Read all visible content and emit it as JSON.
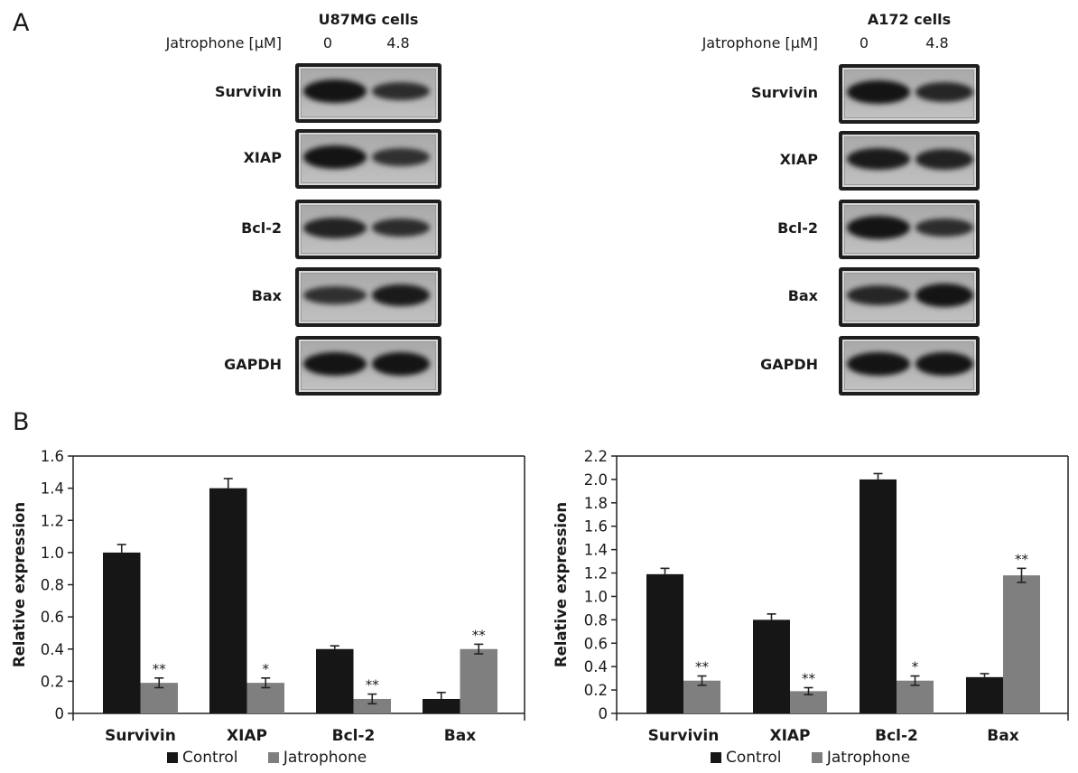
{
  "panel_a": {
    "letter": "A",
    "treatment_label": "Jatrophone [μM]",
    "lanes": [
      "0",
      "4.8"
    ],
    "blots": [
      {
        "cell_line": "U87MG cells",
        "proteins": [
          {
            "name": "Survivin",
            "band_intensity": [
              1.0,
              0.65
            ]
          },
          {
            "name": "XIAP",
            "band_intensity": [
              1.0,
              0.6
            ]
          },
          {
            "name": "Bcl-2",
            "band_intensity": [
              0.8,
              0.65
            ]
          },
          {
            "name": "Bax",
            "band_intensity": [
              0.6,
              0.9
            ]
          },
          {
            "name": "GAPDH",
            "band_intensity": [
              1.0,
              1.0
            ]
          }
        ]
      },
      {
        "cell_line": "A172 cells",
        "proteins": [
          {
            "name": "Survivin",
            "band_intensity": [
              1.0,
              0.75
            ]
          },
          {
            "name": "XIAP",
            "band_intensity": [
              0.9,
              0.8
            ]
          },
          {
            "name": "Bcl-2",
            "band_intensity": [
              1.0,
              0.65
            ]
          },
          {
            "name": "Bax",
            "band_intensity": [
              0.75,
              1.0
            ]
          },
          {
            "name": "GAPDH",
            "band_intensity": [
              1.0,
              1.0
            ]
          }
        ]
      }
    ]
  },
  "panel_b": {
    "letter": "B",
    "legend": [
      {
        "label": "Control",
        "color": "#161616"
      },
      {
        "label": "Jatrophone",
        "color": "#7f7f7f"
      }
    ]
  },
  "chart_data": [
    {
      "type": "bar",
      "title": "U87MG cells",
      "categories": [
        "Survivin",
        "XIAP",
        "Bcl-2",
        "Bax"
      ],
      "series": [
        {
          "name": "Control",
          "color": "#161616",
          "values": [
            1.0,
            1.4,
            0.4,
            0.09
          ],
          "errors": [
            0.05,
            0.06,
            0.02,
            0.04
          ]
        },
        {
          "name": "Jatrophone",
          "color": "#7f7f7f",
          "values": [
            0.19,
            0.19,
            0.09,
            0.4
          ],
          "errors": [
            0.03,
            0.03,
            0.03,
            0.03
          ],
          "significance": [
            "**",
            "*",
            "**",
            "**"
          ]
        }
      ],
      "xlabel": "",
      "ylabel": "Relative expression",
      "ylim": [
        0,
        1.6
      ],
      "yticks": [
        "0",
        "0.2",
        "0.4",
        "0.6",
        "0.8",
        "1.0",
        "1.2",
        "1.4",
        "1.6"
      ],
      "grid": false,
      "legend_position": "bottom"
    },
    {
      "type": "bar",
      "title": "A172 cells",
      "categories": [
        "Survivin",
        "XIAP",
        "Bcl-2",
        "Bax"
      ],
      "series": [
        {
          "name": "Control",
          "color": "#161616",
          "values": [
            1.19,
            0.8,
            2.0,
            0.31
          ],
          "errors": [
            0.05,
            0.05,
            0.05,
            0.03
          ]
        },
        {
          "name": "Jatrophone",
          "color": "#7f7f7f",
          "values": [
            0.28,
            0.19,
            0.28,
            1.18
          ],
          "errors": [
            0.04,
            0.03,
            0.04,
            0.06
          ],
          "significance": [
            "**",
            "**",
            "*",
            "**"
          ]
        }
      ],
      "xlabel": "",
      "ylabel": "Relative expression",
      "ylim": [
        0,
        2.2
      ],
      "yticks": [
        "0",
        "0.2",
        "0.4",
        "0.6",
        "0.8",
        "1.0",
        "1.2",
        "1.4",
        "1.6",
        "1.8",
        "2.0",
        "2.2"
      ],
      "grid": false,
      "legend_position": "bottom"
    }
  ]
}
